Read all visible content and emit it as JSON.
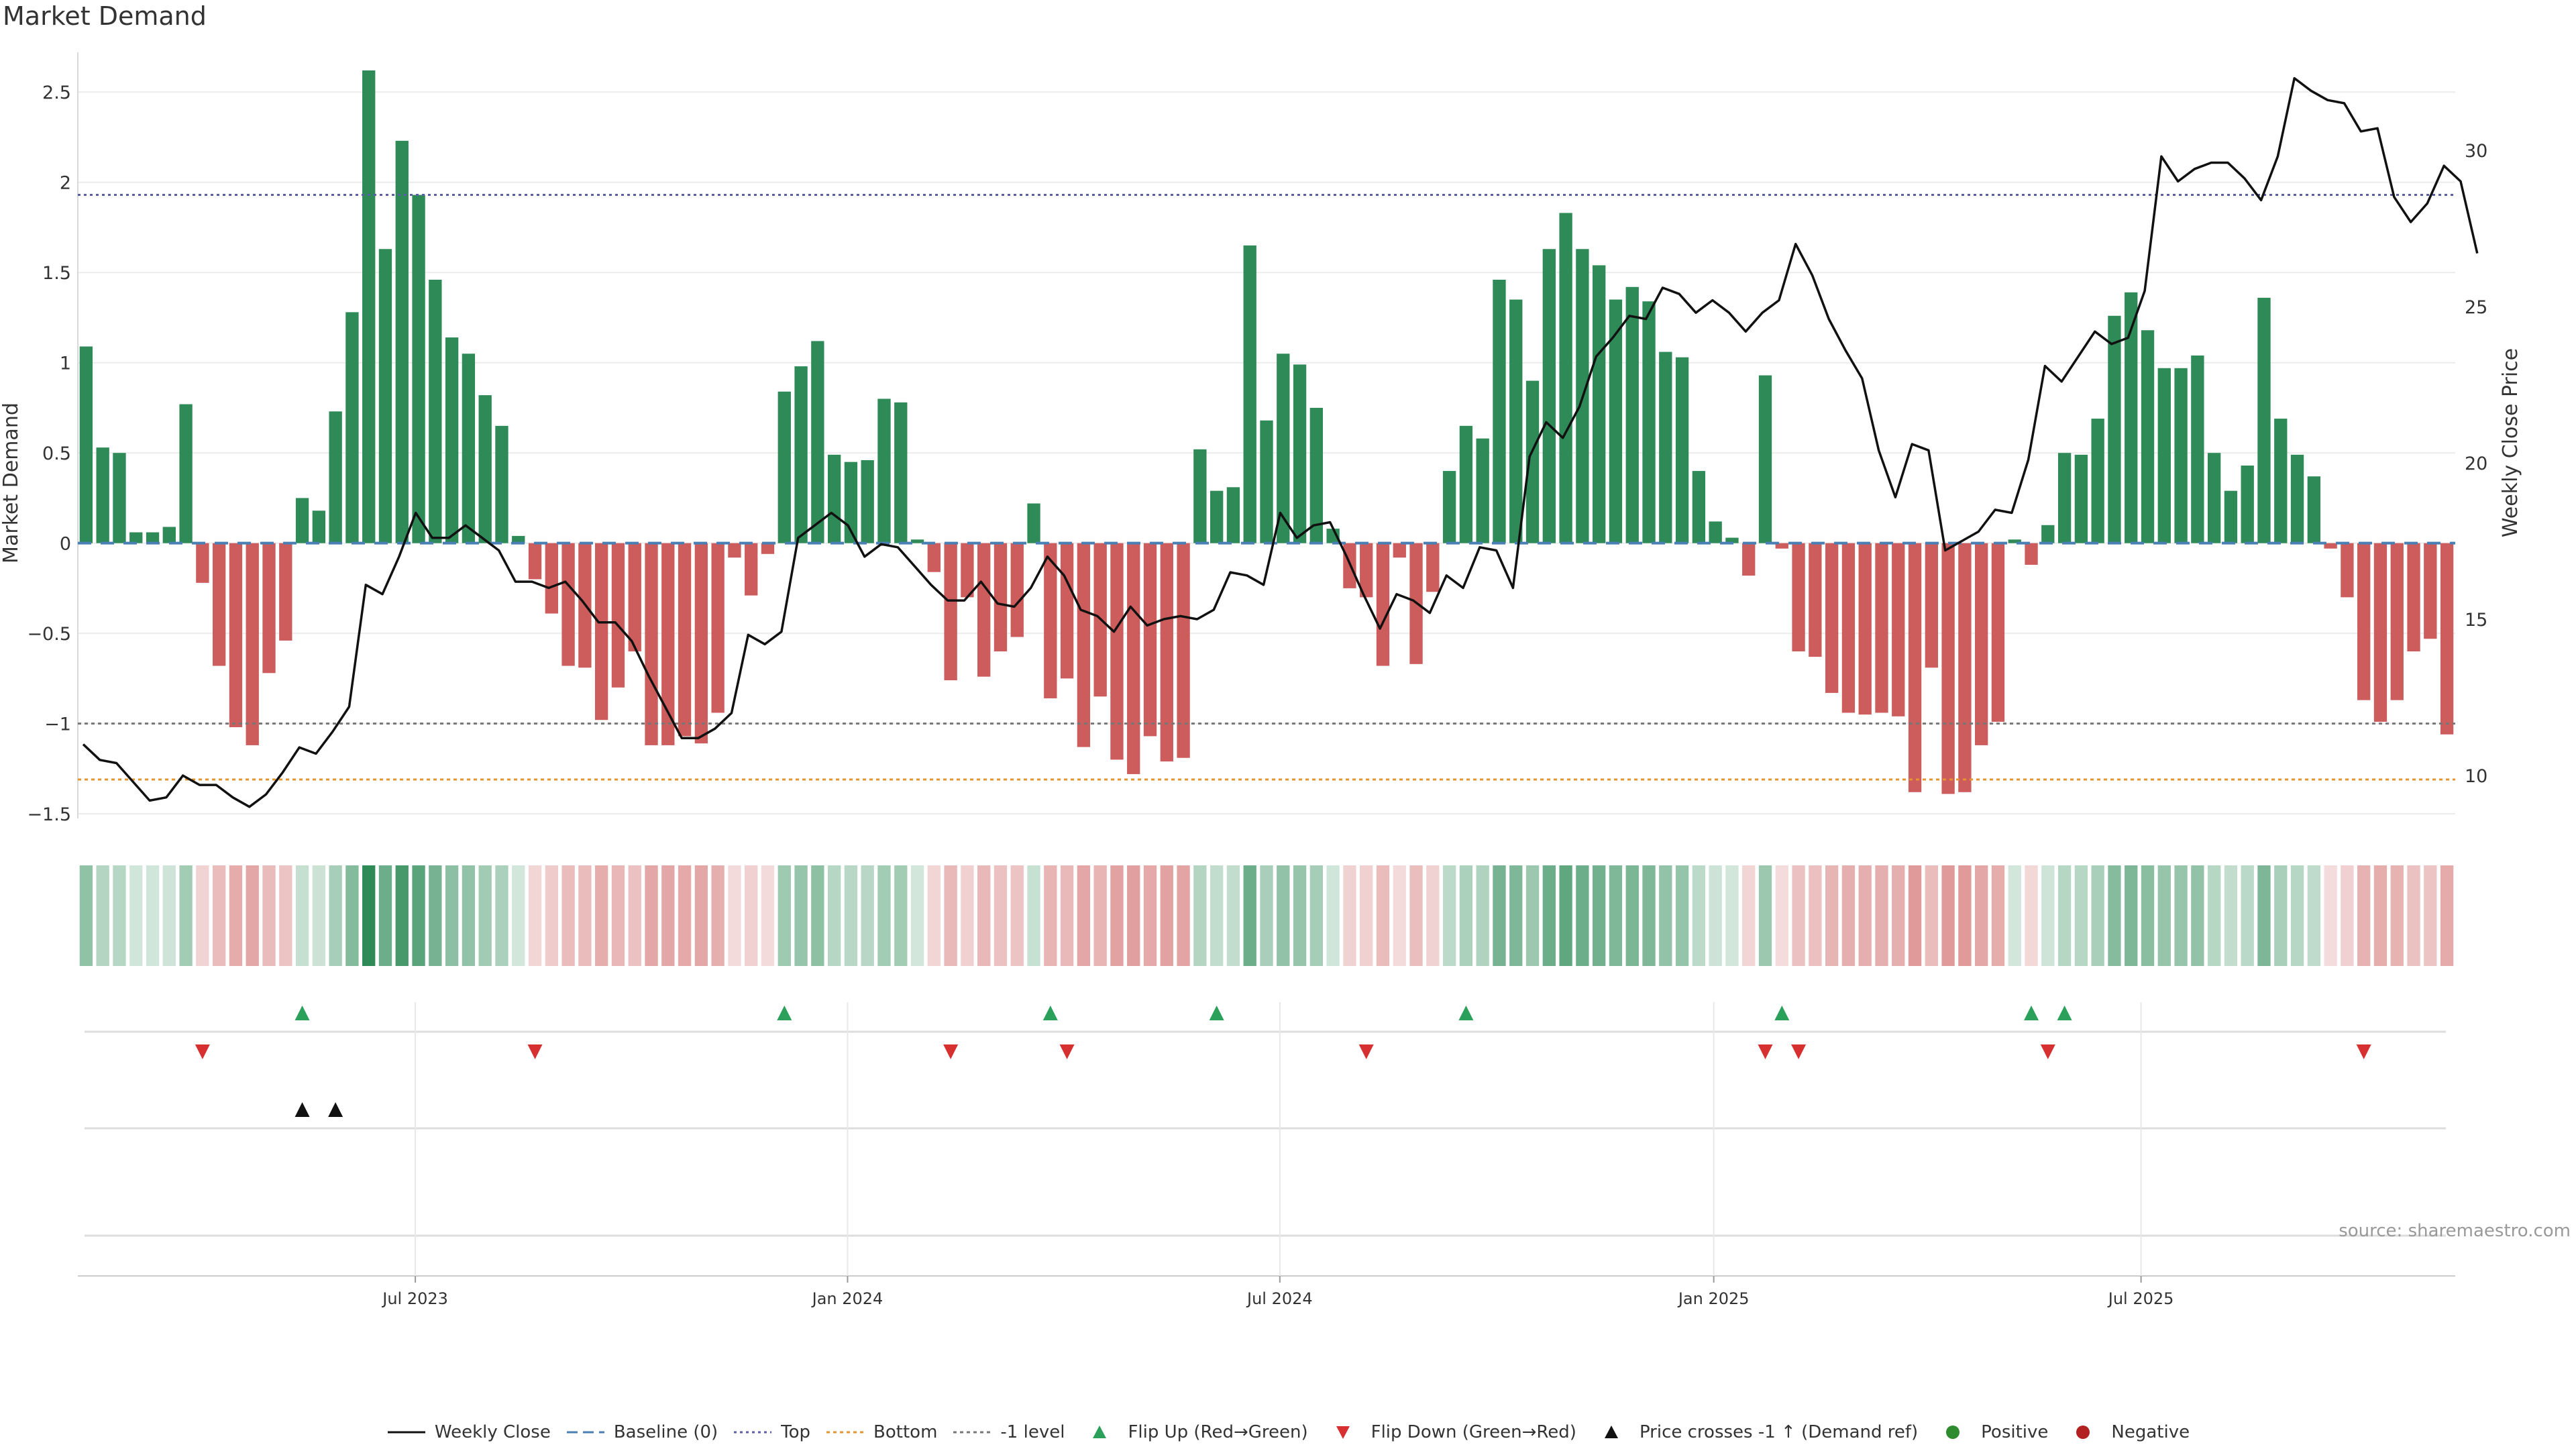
{
  "title": "Market Demand",
  "source": "source: sharemaestro.com",
  "colors": {
    "positive": "#2e8b57",
    "negative": "#cd5c5c",
    "price": "#111111",
    "top": "#5b5fa8",
    "bottom": "#e6942f",
    "minus_one": "#777777",
    "baseline": "#4a7fb5",
    "flip_up": "#2aa05a",
    "flip_down": "#d63030",
    "cross": "#111111",
    "pos_dot": "#2e8b2e",
    "neg_dot": "#b22222"
  },
  "chart_data": {
    "type": "bar",
    "title": "Market Demand",
    "ylabel": "Market Demand",
    "y2label": "Weekly Close Price",
    "ylim": [
      -1.6,
      2.75
    ],
    "y2lim": [
      8.2,
      33.3
    ],
    "yticks": [
      -1.5,
      -1,
      -0.5,
      0,
      0.5,
      1,
      1.5,
      2,
      2.5
    ],
    "ytick_labels": [
      "−1.5",
      "−1",
      "−0.5",
      "0",
      "0.5",
      "1",
      "1.5",
      "2",
      "2.5"
    ],
    "y2ticks": [
      10,
      15,
      20,
      25,
      30
    ],
    "y2tick_labels": [
      "10",
      "15",
      "20",
      "25",
      "30"
    ],
    "x_dates": [
      "Jul 2023",
      "Jan 2024",
      "Jul 2024",
      "Jan 2025",
      "Jul 2025"
    ],
    "x_date_positions": [
      20.3,
      46.3,
      72.3,
      98.4,
      124.1
    ],
    "levels": {
      "top": 1.93,
      "bottom": -1.31,
      "minus_one": -1.0,
      "baseline": 0
    },
    "demand": [
      1.09,
      0.53,
      0.5,
      0.06,
      0.06,
      0.09,
      0.77,
      -0.22,
      -0.68,
      -1.02,
      -1.12,
      -0.72,
      -0.54,
      0.25,
      0.18,
      0.73,
      1.28,
      2.62,
      1.63,
      2.23,
      1.93,
      1.46,
      1.14,
      1.05,
      0.82,
      0.65,
      0.04,
      -0.2,
      -0.39,
      -0.68,
      -0.69,
      -0.98,
      -0.8,
      -0.6,
      -1.12,
      -1.12,
      -1.07,
      -1.11,
      -0.94,
      -0.08,
      -0.29,
      -0.06,
      0.84,
      0.98,
      1.12,
      0.49,
      0.45,
      0.46,
      0.8,
      0.78,
      0.02,
      -0.16,
      -0.76,
      -0.3,
      -0.74,
      -0.6,
      -0.52,
      0.22,
      -0.86,
      -0.75,
      -1.13,
      -0.85,
      -1.2,
      -1.28,
      -1.07,
      -1.21,
      -1.19,
      0.52,
      0.29,
      0.31,
      1.65,
      0.68,
      1.05,
      0.99,
      0.75,
      0.08,
      -0.25,
      -0.3,
      -0.68,
      -0.08,
      -0.67,
      -0.27,
      0.4,
      0.65,
      0.58,
      1.46,
      1.35,
      0.9,
      1.63,
      1.83,
      1.63,
      1.54,
      1.35,
      1.42,
      1.34,
      1.06,
      1.03,
      0.4,
      0.12,
      0.03,
      -0.18,
      0.93,
      -0.03,
      -0.6,
      -0.63,
      -0.83,
      -0.94,
      -0.95,
      -0.94,
      -0.96,
      -1.38,
      -0.69,
      -1.39,
      -1.38,
      -1.12,
      -0.99,
      0.02,
      -0.12,
      0.1,
      0.5,
      0.49,
      0.69,
      1.26,
      1.39,
      1.18,
      0.97,
      0.97,
      1.04,
      0.5,
      0.29,
      0.43,
      1.36,
      0.69,
      0.49,
      0.37,
      -0.03,
      -0.3,
      -0.87,
      -0.99,
      -0.87,
      -0.6,
      -0.53,
      -1.06
    ],
    "price": [
      11.0,
      10.5,
      10.4,
      9.8,
      9.2,
      9.3,
      10.0,
      9.7,
      9.7,
      9.3,
      9.0,
      9.4,
      10.1,
      10.9,
      10.7,
      11.4,
      12.2,
      16.1,
      15.8,
      17.0,
      18.4,
      17.6,
      17.6,
      18.0,
      17.6,
      17.2,
      16.2,
      16.2,
      16.0,
      16.2,
      15.6,
      14.9,
      14.9,
      14.3,
      13.2,
      12.2,
      11.2,
      11.2,
      11.5,
      12.0,
      14.5,
      14.2,
      14.6,
      17.6,
      18.0,
      18.4,
      18.0,
      17.0,
      17.4,
      17.3,
      16.7,
      16.1,
      15.6,
      15.6,
      16.2,
      15.5,
      15.4,
      16.0,
      17.0,
      16.4,
      15.3,
      15.1,
      14.6,
      15.4,
      14.8,
      15.0,
      15.1,
      15.0,
      15.3,
      16.5,
      16.4,
      16.1,
      18.4,
      17.6,
      18.0,
      18.1,
      17.0,
      15.8,
      14.7,
      15.8,
      15.6,
      15.2,
      16.4,
      16.0,
      17.3,
      17.2,
      16.0,
      20.2,
      21.3,
      20.8,
      21.8,
      23.4,
      24.0,
      24.7,
      24.6,
      25.6,
      25.4,
      24.8,
      25.2,
      24.8,
      24.2,
      24.8,
      25.2,
      27.0,
      26.0,
      24.6,
      23.6,
      22.7,
      20.4,
      18.9,
      20.6,
      20.4,
      17.2,
      17.5,
      17.8,
      18.5,
      18.4,
      20.1,
      23.1,
      22.6,
      23.4,
      24.2,
      23.8,
      24.0,
      25.5,
      29.8,
      29.0,
      29.4,
      29.6,
      29.6,
      29.1,
      28.4,
      29.8,
      32.3,
      31.9,
      31.6,
      31.5,
      30.6,
      30.7,
      28.5,
      27.7,
      28.3,
      29.5,
      29.0,
      26.7
    ],
    "flip_up_indices": [
      13,
      42,
      58,
      68,
      83,
      102,
      117,
      119
    ],
    "flip_down_indices": [
      7,
      27,
      52,
      59,
      77,
      101,
      103,
      118,
      137
    ],
    "cross_up_indices": [
      13,
      15
    ],
    "series": [
      {
        "name": "Weekly Close"
      },
      {
        "name": "Baseline (0)"
      },
      {
        "name": "Top"
      },
      {
        "name": "Bottom"
      },
      {
        "name": "-1 level"
      },
      {
        "name": "Flip Up (Red→Green)"
      },
      {
        "name": "Flip Down (Green→Red)"
      },
      {
        "name": "Price crosses -1 ↑ (Demand ref)"
      },
      {
        "name": "Positive"
      },
      {
        "name": "Negative"
      }
    ]
  },
  "legend": [
    {
      "label": "Weekly Close",
      "symbol": "line-solid"
    },
    {
      "label": "Baseline (0)",
      "symbol": "line-dashed"
    },
    {
      "label": "Top",
      "symbol": "line-dotted"
    },
    {
      "label": "Bottom",
      "symbol": "line-dotted-orange"
    },
    {
      "label": "-1 level",
      "symbol": "line-dotted-grey"
    },
    {
      "label": "Flip Up (Red→Green)",
      "symbol": "triangle-up-green"
    },
    {
      "label": "Flip Down (Green→Red)",
      "symbol": "triangle-down-red"
    },
    {
      "label": "Price crosses -1 ↑ (Demand ref)",
      "symbol": "triangle-up-black"
    },
    {
      "label": "Positive",
      "symbol": "dot-green"
    },
    {
      "label": "Negative",
      "symbol": "dot-red"
    }
  ]
}
